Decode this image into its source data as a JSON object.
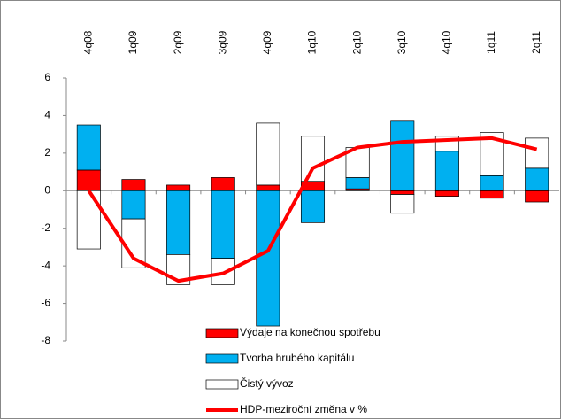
{
  "chart_data": {
    "type": "stacked_bar_line",
    "categories": [
      "4q08",
      "1q09",
      "2q09",
      "3q09",
      "4q09",
      "1q10",
      "2q10",
      "3q10",
      "4q10",
      "1q11",
      "2q11"
    ],
    "series": [
      {
        "name": "Výdaje na konečnou spotřebu",
        "color": "#ff0000",
        "values": [
          1.1,
          0.6,
          0.3,
          0.7,
          0.3,
          0.5,
          0.1,
          -0.2,
          -0.3,
          -0.4,
          -0.6
        ]
      },
      {
        "name": "Tvorba hrubého kapitálu",
        "color": "#00b0f0",
        "values": [
          2.4,
          -1.5,
          -3.4,
          -3.6,
          -7.2,
          -1.7,
          0.6,
          3.7,
          2.1,
          0.8,
          1.2
        ]
      },
      {
        "name": "Čistý vývoz",
        "color": "#ffffff",
        "values": [
          -3.1,
          -2.6,
          -1.6,
          -1.4,
          3.3,
          2.4,
          1.6,
          -1.0,
          0.8,
          2.3,
          1.6
        ]
      },
      {
        "name": "HDP-meziroční změna v %",
        "color": "#ff0000",
        "kind": "line",
        "values": [
          0.0,
          -3.6,
          -4.8,
          -4.4,
          -3.2,
          1.2,
          2.3,
          2.6,
          2.7,
          2.8,
          2.2
        ]
      }
    ],
    "ylim": [
      -8,
      6
    ],
    "yticks": [
      -8,
      -6,
      -4,
      -2,
      0,
      2,
      4,
      6
    ]
  }
}
